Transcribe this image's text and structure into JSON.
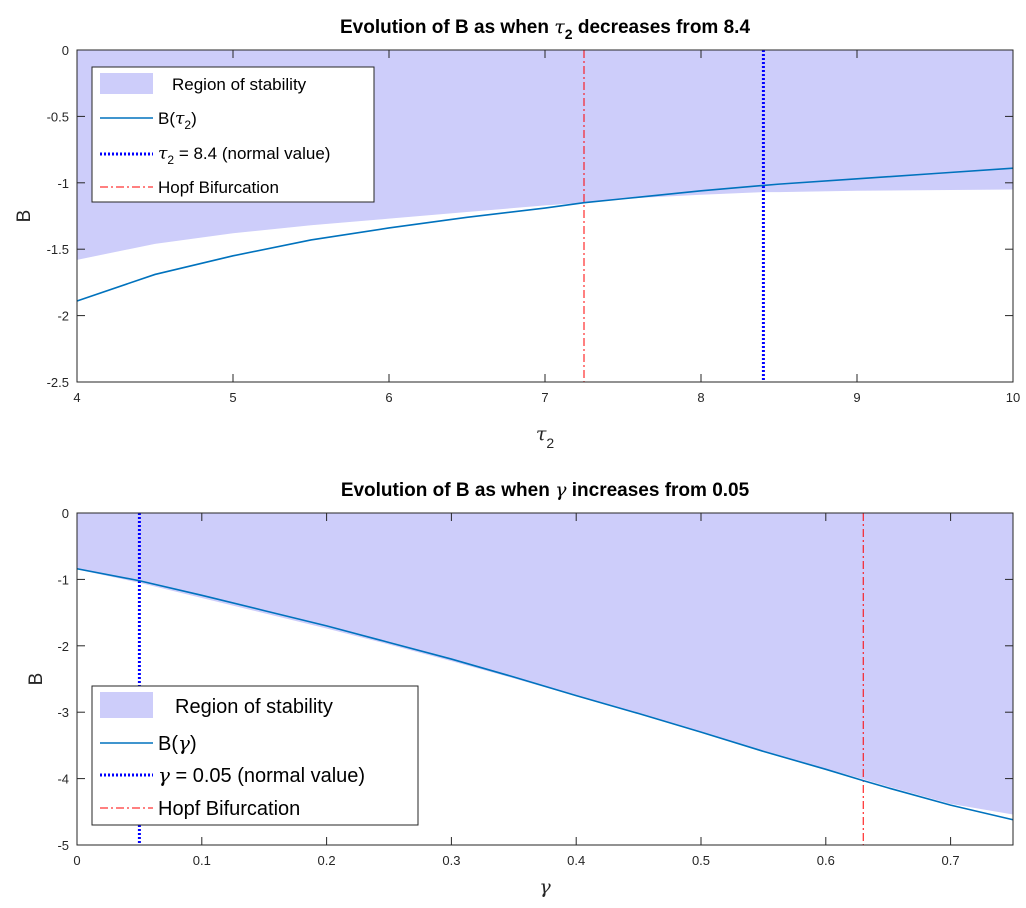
{
  "chart_data": [
    {
      "type": "area",
      "title_pre": "Evolution of B as when ",
      "title_sym": "τ",
      "title_sub": "2",
      "title_post": " decreases from 8.4",
      "xlabel_sym": "τ",
      "xlabel_sub": "2",
      "ylabel": "B",
      "xlim": [
        4,
        10
      ],
      "ylim": [
        -2.5,
        0
      ],
      "xticks": [
        "4",
        "5",
        "6",
        "7",
        "8",
        "9",
        "10"
      ],
      "yticks": [
        "0",
        "-0.5",
        "-1",
        "-1.5",
        "-2",
        "-2.5"
      ],
      "grid": false,
      "legend_position": "top-left",
      "x": [
        4.0,
        4.5,
        5.0,
        5.5,
        6.0,
        6.5,
        7.0,
        7.25,
        7.5,
        8.0,
        8.4,
        8.5,
        9.0,
        9.5,
        10.0
      ],
      "series": [
        {
          "kind": "stability-region",
          "color": "#cdcdfa",
          "lower": [
            -1.58,
            -1.46,
            -1.38,
            -1.32,
            -1.27,
            -1.22,
            -1.17,
            -1.15,
            -1.12,
            -1.09,
            -1.07,
            -1.07,
            -1.06,
            -1.055,
            -1.05
          ],
          "upper": 0
        },
        {
          "kind": "curve",
          "color": "#0072bd",
          "y": [
            -1.89,
            -1.69,
            -1.55,
            -1.43,
            -1.34,
            -1.26,
            -1.19,
            -1.15,
            -1.12,
            -1.06,
            -1.02,
            -1.01,
            -0.97,
            -0.93,
            -0.89
          ]
        }
      ],
      "vlines": [
        {
          "kind": "normal",
          "x": 8.4,
          "color": "#0000ff"
        },
        {
          "kind": "hopf",
          "x": 7.25,
          "color": "#ff0000"
        }
      ],
      "legend": {
        "region": "Region of stability",
        "curve_pre": "B(",
        "curve_sym": "τ",
        "curve_sub": "2",
        "curve_post": ")",
        "normal_sym": "τ",
        "normal_sub": "2",
        "normal_post": " = 8.4 (normal value)",
        "hopf": "Hopf Bifurcation"
      }
    },
    {
      "type": "area",
      "title_pre": "Evolution of B as when ",
      "title_sym": "γ",
      "title_post": " increases from 0.05",
      "xlabel_sym": "γ",
      "ylabel": "B",
      "xlim": [
        0,
        0.75
      ],
      "ylim": [
        -5,
        0
      ],
      "xticks": [
        "0",
        "0.1",
        "0.2",
        "0.3",
        "0.4",
        "0.5",
        "0.6",
        "0.7"
      ],
      "yticks": [
        "0",
        "-1",
        "-2",
        "-3",
        "-4",
        "-5"
      ],
      "grid": false,
      "legend_position": "bottom-left",
      "x": [
        0.0,
        0.05,
        0.1,
        0.15,
        0.2,
        0.25,
        0.3,
        0.35,
        0.4,
        0.45,
        0.5,
        0.55,
        0.6,
        0.63,
        0.65,
        0.7,
        0.75
      ],
      "series": [
        {
          "kind": "stability-region",
          "color": "#cdcdfa",
          "lower": [
            -0.85,
            -1.05,
            -1.28,
            -1.51,
            -1.74,
            -1.98,
            -2.23,
            -2.49,
            -2.76,
            -3.03,
            -3.3,
            -3.58,
            -3.85,
            -4.01,
            -4.12,
            -4.38,
            -4.54
          ],
          "upper": 0
        },
        {
          "kind": "curve",
          "color": "#0072bd",
          "y": [
            -0.84,
            -1.02,
            -1.24,
            -1.47,
            -1.7,
            -1.95,
            -2.2,
            -2.47,
            -2.75,
            -3.02,
            -3.3,
            -3.59,
            -3.86,
            -4.03,
            -4.14,
            -4.4,
            -4.62
          ]
        }
      ],
      "vlines": [
        {
          "kind": "normal",
          "x": 0.05,
          "color": "#0000ff"
        },
        {
          "kind": "hopf",
          "x": 0.63,
          "color": "#ff0000"
        }
      ],
      "legend": {
        "region": "Region of stability",
        "curve_pre": "B(",
        "curve_sym": "γ",
        "curve_post": ")",
        "normal_sym": "γ",
        "normal_post": " = 0.05 (normal value)",
        "hopf": "Hopf Bifurcation"
      }
    }
  ]
}
